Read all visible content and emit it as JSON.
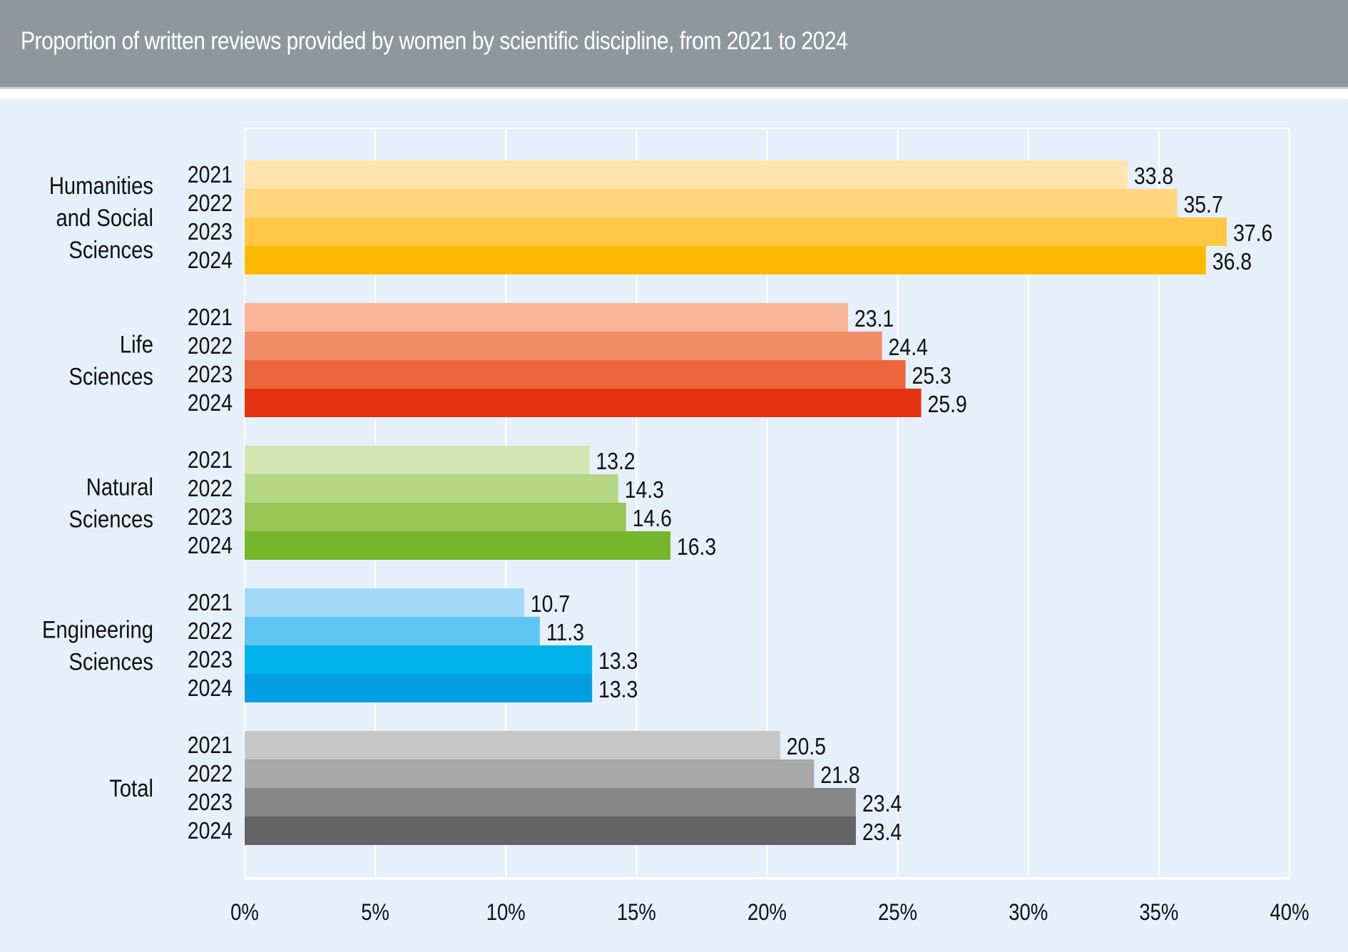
{
  "header": {
    "title": "Proportion of written reviews provided by women by scientific discipline, from 2021 to 2024"
  },
  "chart_data": {
    "type": "bar",
    "orientation": "horizontal",
    "title": "Proportion of written reviews provided by women by scientific discipline, from 2021 to 2024",
    "xlabel": "",
    "ylabel": "",
    "xlim": [
      0,
      40
    ],
    "x_ticks": [
      0,
      5,
      10,
      15,
      20,
      25,
      30,
      35,
      40
    ],
    "x_tick_labels": [
      "0%",
      "5%",
      "10%",
      "15%",
      "20%",
      "25%",
      "30%",
      "35%",
      "40%"
    ],
    "grid": "vertical",
    "legend": "none",
    "years": [
      "2021",
      "2022",
      "2023",
      "2024"
    ],
    "groups": [
      {
        "name": "Humanities and Social Sciences",
        "label_lines": [
          "Humanities",
          "and Social",
          "Sciences"
        ],
        "values": [
          33.8,
          35.7,
          37.6,
          36.8
        ],
        "value_labels": [
          "33.8",
          "35.7",
          "37.6",
          "36.8"
        ],
        "colors": [
          "#ffe5ad",
          "#ffd57e",
          "#ffc745",
          "#fbba00"
        ]
      },
      {
        "name": "Life Sciences",
        "label_lines": [
          "Life",
          "Sciences"
        ],
        "values": [
          23.1,
          24.4,
          25.3,
          25.9
        ],
        "value_labels": [
          "23.1",
          "24.4",
          "25.3",
          "25.9"
        ],
        "colors": [
          "#f8b597",
          "#f18e69",
          "#ec653b",
          "#e53312"
        ]
      },
      {
        "name": "Natural Sciences",
        "label_lines": [
          "Natural",
          "Sciences"
        ],
        "values": [
          13.2,
          14.3,
          14.6,
          16.3
        ],
        "value_labels": [
          "13.2",
          "14.3",
          "14.6",
          "16.3"
        ],
        "colors": [
          "#d2e5b0",
          "#b5d684",
          "#98c556",
          "#74b72a"
        ]
      },
      {
        "name": "Engineering Sciences",
        "label_lines": [
          "Engineering",
          "Sciences"
        ],
        "values": [
          10.7,
          11.3,
          13.3,
          13.3
        ],
        "value_labels": [
          "10.7",
          "11.3",
          "13.3",
          "13.3"
        ],
        "colors": [
          "#a3d9f7",
          "#5ec5f2",
          "#00b2ea",
          "#009fe3"
        ]
      },
      {
        "name": "Total",
        "label_lines": [
          "Total"
        ],
        "values": [
          20.5,
          21.8,
          23.4,
          23.4
        ],
        "value_labels": [
          "20.5",
          "21.8",
          "23.4",
          "23.4"
        ],
        "colors": [
          "#c6c6c6",
          "#a8a8a8",
          "#878787",
          "#646464"
        ]
      }
    ]
  }
}
